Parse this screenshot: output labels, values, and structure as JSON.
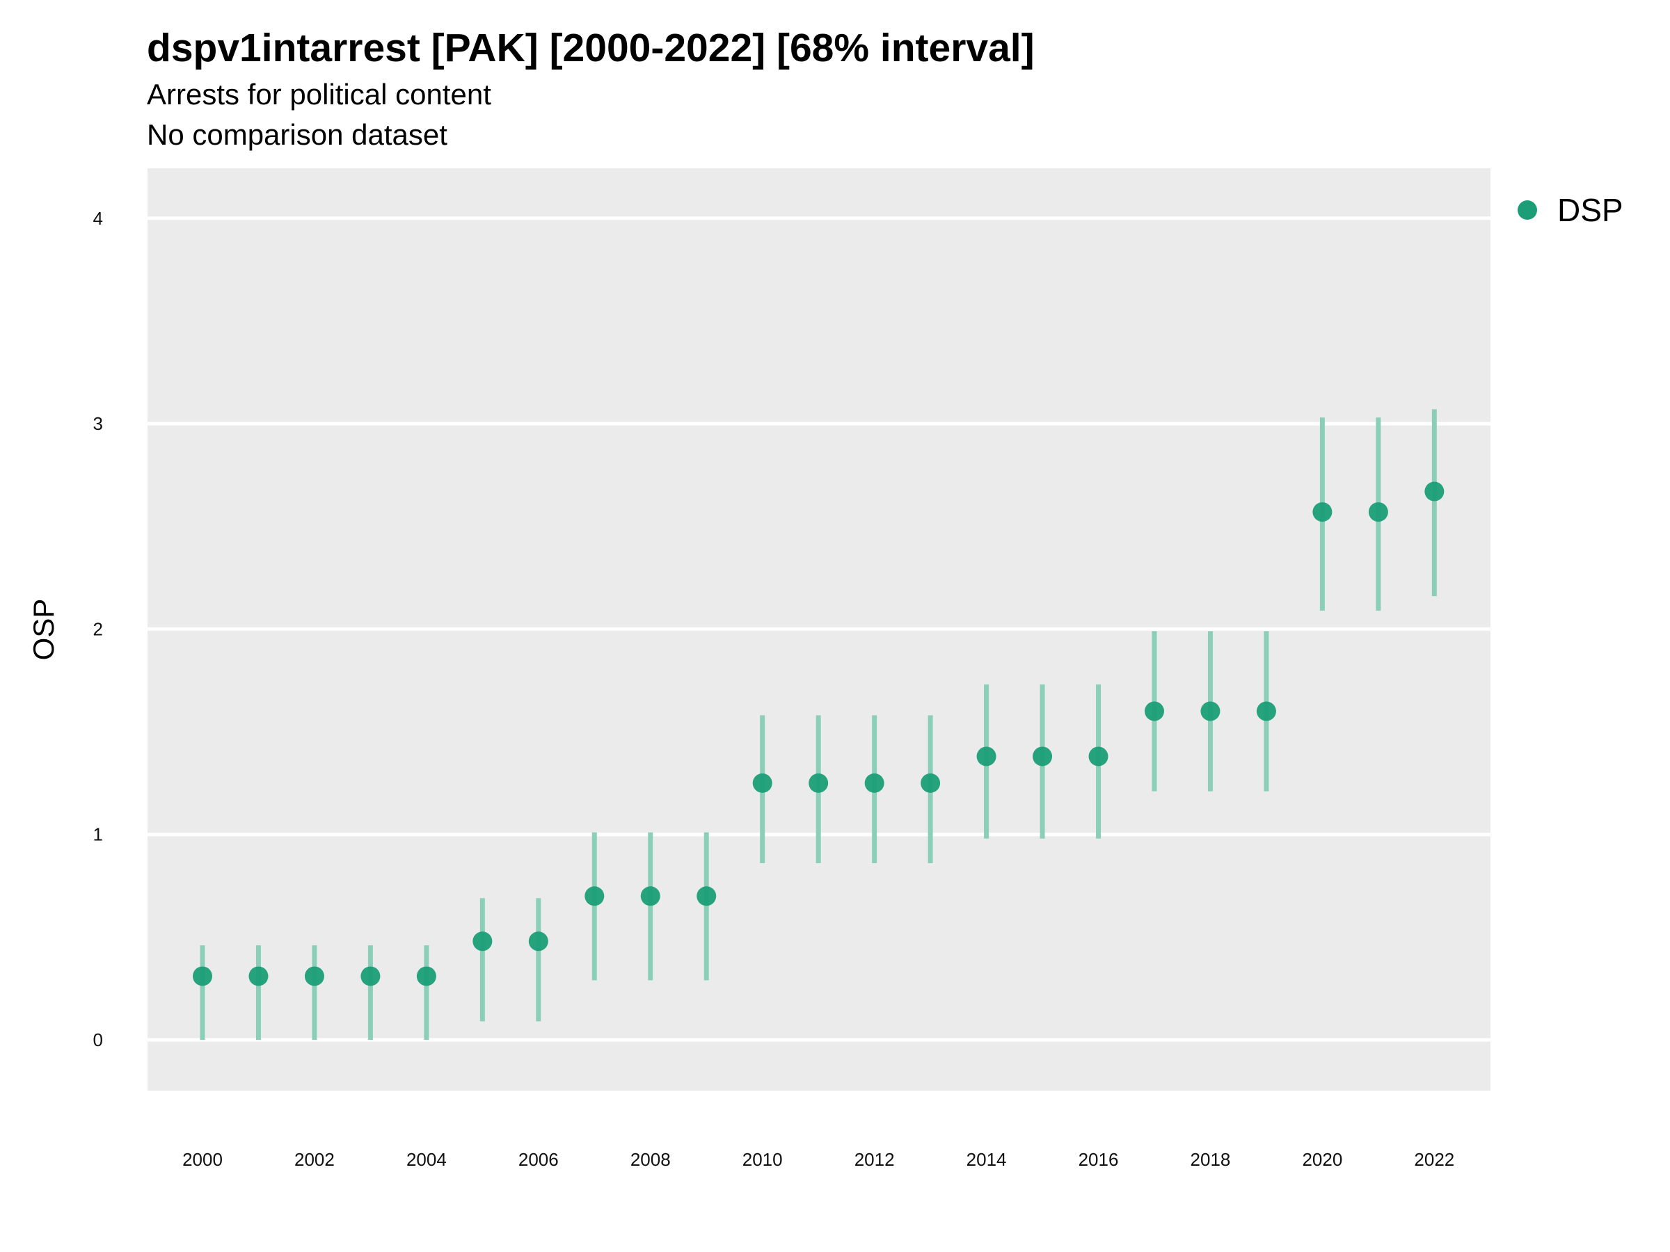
{
  "chart_data": {
    "type": "scatter",
    "title": "dspv1intarrest [PAK] [2000-2022] [68% interval]",
    "subtitle": [
      "Arrests for political content",
      "No comparison dataset"
    ],
    "xlabel": "",
    "ylabel": "OSP",
    "xlim": [
      1999,
      2023
    ],
    "ylim": [
      -0.25,
      4.25
    ],
    "x_ticks": [
      "2000",
      "2002",
      "2004",
      "2006",
      "2008",
      "2010",
      "2012",
      "2014",
      "2016",
      "2018",
      "2020",
      "2022"
    ],
    "y_ticks": [
      "0",
      "1",
      "2",
      "3",
      "4"
    ],
    "grid": true,
    "legend_position": "right",
    "colors": {
      "point": "#1b9e77",
      "interval": "#8ccfb9",
      "panel": "#ebebeb",
      "grid": "#ffffff"
    },
    "series": [
      {
        "name": "DSP",
        "points": [
          {
            "x": 2000,
            "y": 0.31,
            "low": 0.0,
            "high": 0.46
          },
          {
            "x": 2001,
            "y": 0.31,
            "low": 0.0,
            "high": 0.46
          },
          {
            "x": 2002,
            "y": 0.31,
            "low": 0.0,
            "high": 0.46
          },
          {
            "x": 2003,
            "y": 0.31,
            "low": 0.0,
            "high": 0.46
          },
          {
            "x": 2004,
            "y": 0.31,
            "low": 0.0,
            "high": 0.46
          },
          {
            "x": 2005,
            "y": 0.48,
            "low": 0.09,
            "high": 0.69
          },
          {
            "x": 2006,
            "y": 0.48,
            "low": 0.09,
            "high": 0.69
          },
          {
            "x": 2007,
            "y": 0.7,
            "low": 0.29,
            "high": 1.01
          },
          {
            "x": 2008,
            "y": 0.7,
            "low": 0.29,
            "high": 1.01
          },
          {
            "x": 2009,
            "y": 0.7,
            "low": 0.29,
            "high": 1.01
          },
          {
            "x": 2010,
            "y": 1.25,
            "low": 0.86,
            "high": 1.58
          },
          {
            "x": 2011,
            "y": 1.25,
            "low": 0.86,
            "high": 1.58
          },
          {
            "x": 2012,
            "y": 1.25,
            "low": 0.86,
            "high": 1.58
          },
          {
            "x": 2013,
            "y": 1.25,
            "low": 0.86,
            "high": 1.58
          },
          {
            "x": 2014,
            "y": 1.38,
            "low": 0.98,
            "high": 1.73
          },
          {
            "x": 2015,
            "y": 1.38,
            "low": 0.98,
            "high": 1.73
          },
          {
            "x": 2016,
            "y": 1.38,
            "low": 0.98,
            "high": 1.73
          },
          {
            "x": 2017,
            "y": 1.6,
            "low": 1.21,
            "high": 1.99
          },
          {
            "x": 2018,
            "y": 1.6,
            "low": 1.21,
            "high": 1.99
          },
          {
            "x": 2019,
            "y": 1.6,
            "low": 1.21,
            "high": 1.99
          },
          {
            "x": 2020,
            "y": 2.57,
            "low": 2.09,
            "high": 3.03
          },
          {
            "x": 2021,
            "y": 2.57,
            "low": 2.09,
            "high": 3.03
          },
          {
            "x": 2022,
            "y": 2.67,
            "low": 2.16,
            "high": 3.07
          }
        ]
      }
    ]
  }
}
